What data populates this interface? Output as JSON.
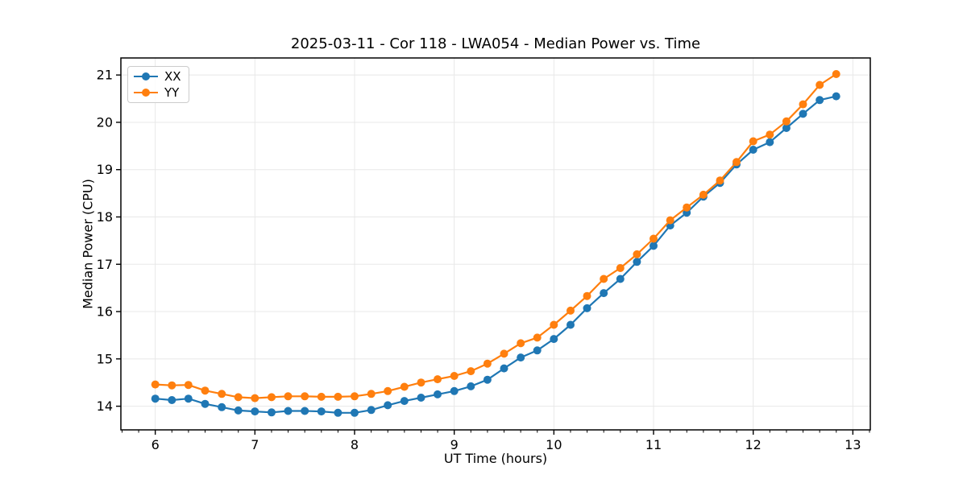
{
  "figure": {
    "background": "#ffffff"
  },
  "chart_data": {
    "type": "line",
    "title": "2025-03-11 - Cor 118 - LWA054 - Median Power vs. Time",
    "xlabel": "UT Time (hours)",
    "ylabel": "Median Power (CPU)",
    "xlim": [
      5.655,
      13.175
    ],
    "ylim": [
      13.5,
      21.36
    ],
    "xticks": [
      6,
      7,
      8,
      9,
      10,
      11,
      12,
      13
    ],
    "yticks": [
      14,
      15,
      16,
      17,
      18,
      19,
      20,
      21
    ],
    "x_minor_tick_interval": 0.16667,
    "grid": true,
    "grid_color": "#e8e8e8",
    "legend_position": "upper-left",
    "x": [
      6.0,
      6.167,
      6.333,
      6.5,
      6.667,
      6.833,
      7.0,
      7.167,
      7.333,
      7.5,
      7.667,
      7.833,
      8.0,
      8.167,
      8.333,
      8.5,
      8.667,
      8.833,
      9.0,
      9.167,
      9.333,
      9.5,
      9.667,
      9.833,
      10.0,
      10.167,
      10.333,
      10.5,
      10.667,
      10.833,
      11.0,
      11.167,
      11.333,
      11.5,
      11.667,
      11.833,
      12.0,
      12.167,
      12.333,
      12.5,
      12.667,
      12.833
    ],
    "series": [
      {
        "name": "XX",
        "color": "#1f77b4",
        "marker": "circle",
        "values": [
          14.16,
          14.13,
          14.16,
          14.05,
          13.98,
          13.91,
          13.89,
          13.87,
          13.9,
          13.9,
          13.89,
          13.86,
          13.86,
          13.92,
          14.02,
          14.11,
          14.18,
          14.25,
          14.32,
          14.42,
          14.56,
          14.8,
          15.03,
          15.18,
          15.42,
          15.72,
          16.07,
          16.39,
          16.69,
          17.05,
          17.39,
          17.82,
          18.09,
          18.43,
          18.72,
          19.11,
          19.42,
          19.58,
          19.88,
          20.18,
          20.47,
          20.55
        ]
      },
      {
        "name": "YY",
        "color": "#ff7f0e",
        "marker": "circle",
        "values": [
          14.46,
          14.44,
          14.45,
          14.33,
          14.26,
          14.19,
          14.17,
          14.19,
          14.21,
          14.21,
          14.2,
          14.2,
          14.21,
          14.26,
          14.32,
          14.41,
          14.5,
          14.57,
          14.64,
          14.74,
          14.9,
          15.11,
          15.33,
          15.45,
          15.72,
          16.02,
          16.33,
          16.69,
          16.92,
          17.21,
          17.54,
          17.93,
          18.2,
          18.47,
          18.77,
          19.16,
          19.6,
          19.74,
          20.02,
          20.38,
          20.79,
          21.02
        ]
      }
    ]
  }
}
